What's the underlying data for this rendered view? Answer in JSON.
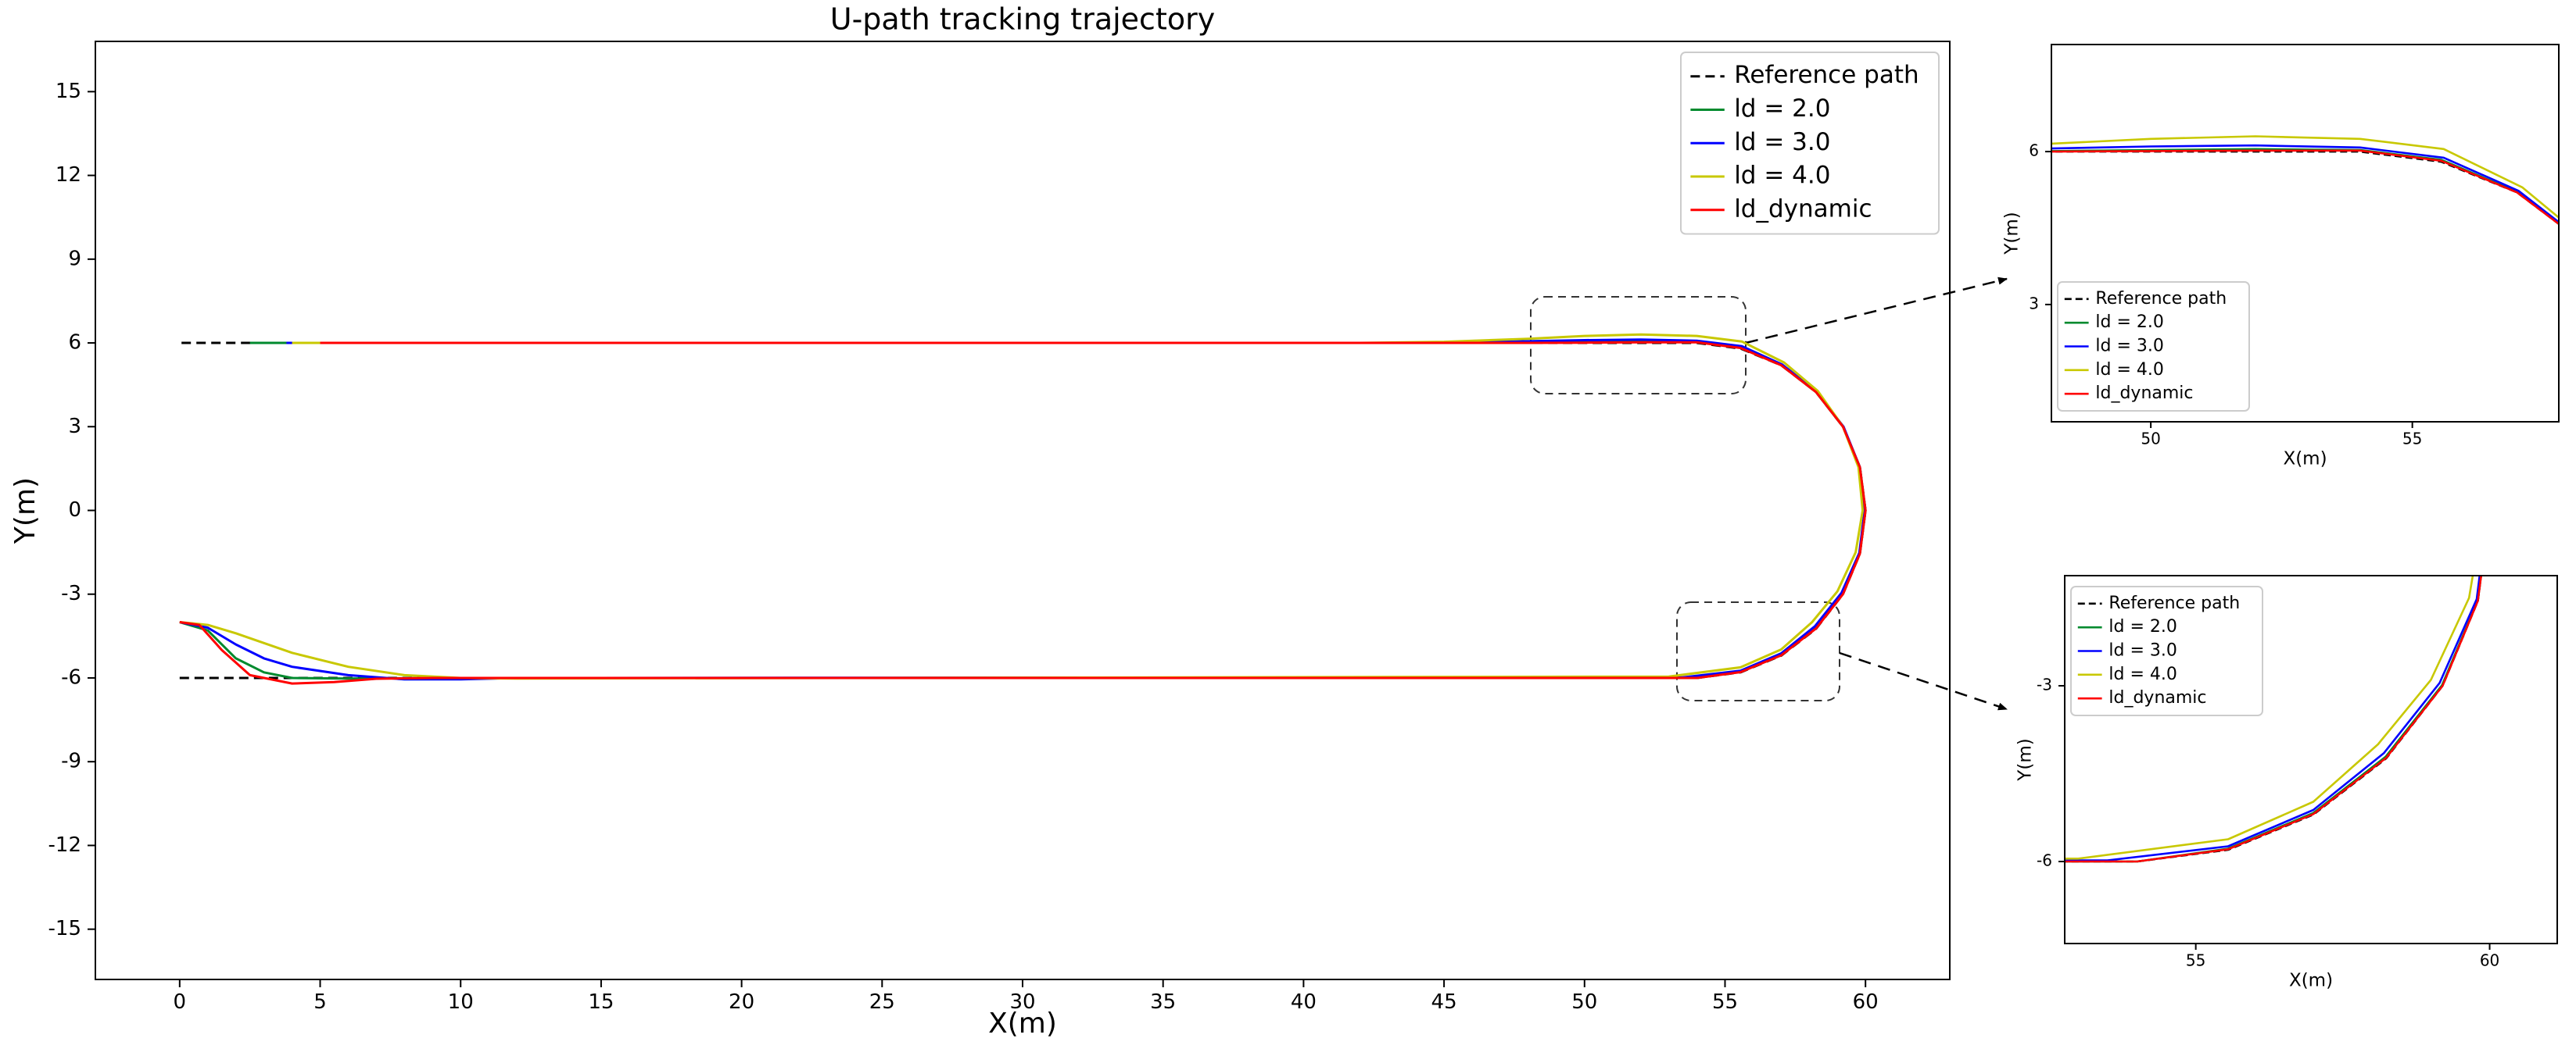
{
  "chart_data": {
    "type": "line",
    "title": "U-path tracking trajectory",
    "xlabel": "X(m)",
    "ylabel": "Y(m)",
    "xlim": [
      -3,
      63
    ],
    "ylim": [
      -16.8,
      16.8
    ],
    "xticks": [
      0,
      5,
      10,
      15,
      20,
      25,
      30,
      35,
      40,
      45,
      50,
      55,
      60
    ],
    "yticks": [
      -15,
      -12,
      -9,
      -6,
      -3,
      0,
      3,
      6,
      9,
      12,
      15
    ],
    "legend": "upper right",
    "series": [
      {
        "name": "Reference path",
        "color": "#000000",
        "linestyle": "dashed",
        "x": [
          0,
          54,
          55.55,
          57.0,
          58.24,
          59.2,
          59.8,
          60,
          59.8,
          59.2,
          58.24,
          57.0,
          55.55,
          54,
          0
        ],
        "values": [
          -6,
          -6,
          -5.8,
          -5.2,
          -4.24,
          -3.0,
          -1.55,
          0,
          1.55,
          3.0,
          4.24,
          5.2,
          5.8,
          6,
          6
        ]
      },
      {
        "name": "ld = 2.0",
        "color": "#008a2e",
        "linestyle": "solid",
        "x": [
          0,
          1,
          2,
          3,
          4,
          6,
          10,
          54,
          55.55,
          57,
          58.23,
          59.19,
          59.8,
          60,
          59.8,
          59.2,
          58.24,
          57.0,
          55.55,
          54,
          52,
          50,
          47,
          2.5
        ],
        "values": [
          -4,
          -4.3,
          -5.3,
          -5.8,
          -6.0,
          -6.02,
          -6,
          -6,
          -5.78,
          -5.17,
          -4.21,
          -2.99,
          -1.54,
          0,
          1.55,
          3.0,
          4.24,
          5.21,
          5.84,
          6.03,
          6.05,
          6.03,
          6.0,
          6
        ]
      },
      {
        "name": "ld = 3.0",
        "color": "#0000ff",
        "linestyle": "solid",
        "x": [
          0,
          1,
          2,
          3,
          4,
          6,
          8,
          10,
          12,
          53.5,
          55.55,
          57,
          58.2,
          59.15,
          59.78,
          59.97,
          59.8,
          59.22,
          58.26,
          57.03,
          55.6,
          54,
          52,
          50,
          48,
          45,
          43,
          3.8
        ],
        "values": [
          -4,
          -4.2,
          -4.8,
          -5.3,
          -5.6,
          -5.9,
          -6.05,
          -6.05,
          -6,
          -5.98,
          -5.74,
          -5.12,
          -4.15,
          -2.95,
          -1.52,
          0,
          1.55,
          3.0,
          4.25,
          5.23,
          5.88,
          6.08,
          6.12,
          6.1,
          6.06,
          6.01,
          6.0,
          6
        ]
      },
      {
        "name": "ld = 4.0",
        "color": "#c8c800",
        "linestyle": "solid",
        "x": [
          0,
          1,
          2,
          4,
          6,
          8,
          10,
          12,
          53,
          55.55,
          57.0,
          58.1,
          59.0,
          59.65,
          59.9,
          59.75,
          59.2,
          58.3,
          57.1,
          55.6,
          54,
          52,
          50,
          48,
          45,
          42,
          4
        ],
        "values": [
          -4,
          -4.1,
          -4.4,
          -5.1,
          -5.6,
          -5.9,
          -6.0,
          -6.02,
          -5.95,
          -5.62,
          -4.98,
          -4.0,
          -2.9,
          -1.5,
          0,
          1.55,
          3.0,
          4.28,
          5.3,
          6.05,
          6.25,
          6.3,
          6.25,
          6.15,
          6.04,
          6.0,
          6
        ]
      },
      {
        "name": "ld_dynamic",
        "color": "#ff0000",
        "linestyle": "solid",
        "x": [
          0,
          0.7,
          1.5,
          2.5,
          4,
          5.5,
          7,
          9,
          54,
          55.55,
          57,
          58.24,
          59.2,
          59.8,
          60,
          59.8,
          59.2,
          58.24,
          57,
          55.55,
          54,
          52,
          50,
          48,
          5
        ],
        "values": [
          -4,
          -4.1,
          -5,
          -5.9,
          -6.2,
          -6.15,
          -6.03,
          -6,
          -6,
          -5.79,
          -5.19,
          -4.23,
          -3.0,
          -1.55,
          0,
          1.55,
          3.0,
          4.24,
          5.2,
          5.82,
          6.02,
          6.02,
          6.01,
          6.0,
          6
        ]
      }
    ],
    "insets": [
      {
        "xlim": [
          48.1,
          57.8
        ],
        "ylim": [
          0.7,
          8.1
        ],
        "xticks": [
          50,
          55
        ],
        "yticks": [
          3,
          6
        ],
        "legend": "lower left"
      },
      {
        "xlim": [
          52.77,
          61.15
        ],
        "ylim": [
          -7.4,
          -1.12
        ],
        "xticks": [
          55,
          60
        ],
        "yticks": [
          -6,
          -3
        ],
        "legend": "upper left"
      }
    ]
  }
}
